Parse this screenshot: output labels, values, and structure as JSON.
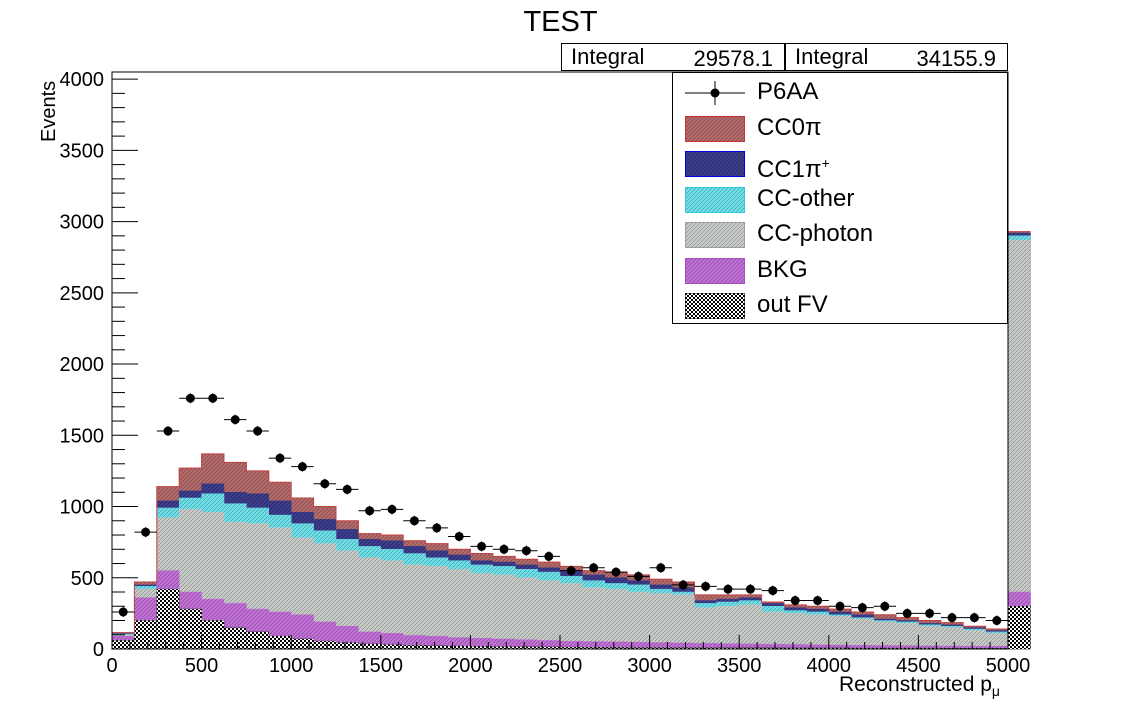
{
  "chart_data": {
    "type": "bar",
    "title": "TEST",
    "xlabel": "Reconstructed p",
    "xlabel_sub": "μ",
    "ylabel": "Events",
    "xlim": [
      0,
      5000
    ],
    "ylim": [
      0,
      4050
    ],
    "bin_width": 125,
    "x_ticks": [
      "0",
      "500",
      "1000",
      "1500",
      "2000",
      "2500",
      "3000",
      "3500",
      "4000",
      "4500",
      "5000"
    ],
    "y_ticks": [
      "0",
      "500",
      "1000",
      "1500",
      "2000",
      "2500",
      "3000",
      "3500",
      "4000"
    ],
    "stats": [
      {
        "label": "Integral",
        "value": "29578.1"
      },
      {
        "label": "Integral",
        "value": "34155.9"
      }
    ],
    "legend": [
      {
        "name": "P6AA",
        "kind": "marker"
      },
      {
        "name": "CC0π",
        "kind": "fill",
        "color": "#b56a6a",
        "line": "#cc3333"
      },
      {
        "name": "CC1π",
        "sup": "+",
        "kind": "fill",
        "color": "#3c3c8c",
        "line": "#0000ee"
      },
      {
        "name": "CC-other",
        "kind": "fill",
        "color": "#6de0ea",
        "line": "#30d0e0"
      },
      {
        "name": "CC-photon",
        "kind": "fill",
        "color": "#c8ccc8",
        "line": "#a0a4a0"
      },
      {
        "name": "BKG",
        "kind": "fill",
        "color": "#c270d8",
        "line": "#b050c8"
      },
      {
        "name": "out FV",
        "kind": "fill",
        "color": "#1a1a1a",
        "line": "#000000"
      }
    ],
    "series_stack_cumulative": [
      {
        "name": "out FV",
        "color": "#1a1a1a",
        "values": [
          60,
          200,
          420,
          280,
          200,
          150,
          120,
          90,
          70,
          55,
          45,
          35,
          30,
          25,
          22,
          20,
          18,
          16,
          15,
          14,
          13,
          12,
          11,
          10,
          10,
          9,
          9,
          8,
          8,
          8,
          7,
          7,
          7,
          6,
          6,
          6,
          6,
          5,
          5,
          5,
          300
        ]
      },
      {
        "name": "BKG",
        "color": "#c270d8",
        "values": [
          90,
          360,
          550,
          400,
          350,
          320,
          280,
          260,
          240,
          190,
          160,
          120,
          110,
          95,
          90,
          80,
          75,
          70,
          65,
          60,
          55,
          52,
          50,
          48,
          45,
          42,
          40,
          38,
          36,
          34,
          32,
          30,
          28,
          26,
          25,
          24,
          22,
          21,
          20,
          20,
          400
        ]
      },
      {
        "name": "CC-photon",
        "color": "#c8ccc8",
        "values": [
          100,
          420,
          920,
          980,
          960,
          890,
          880,
          850,
          780,
          740,
          690,
          640,
          620,
          590,
          580,
          560,
          530,
          520,
          500,
          480,
          460,
          430,
          420,
          400,
          390,
          380,
          290,
          300,
          310,
          260,
          250,
          240,
          230,
          210,
          190,
          180,
          160,
          150,
          130,
          110,
          2870
        ]
      },
      {
        "name": "CC-other",
        "color": "#6de0ea",
        "values": [
          105,
          440,
          990,
          1060,
          1090,
          1020,
          990,
          940,
          880,
          830,
          770,
          720,
          700,
          670,
          640,
          620,
          590,
          580,
          560,
          540,
          510,
          480,
          460,
          450,
          420,
          400,
          320,
          330,
          340,
          300,
          270,
          260,
          240,
          220,
          200,
          190,
          170,
          160,
          140,
          120,
          2900
        ]
      },
      {
        "name": "CC1π+",
        "color": "#3c3c8c",
        "values": [
          110,
          450,
          1040,
          1110,
          1160,
          1100,
          1090,
          1040,
          960,
          910,
          840,
          770,
          760,
          720,
          690,
          660,
          620,
          610,
          590,
          570,
          550,
          520,
          500,
          480,
          450,
          430,
          340,
          350,
          360,
          320,
          290,
          280,
          260,
          240,
          210,
          200,
          180,
          170,
          150,
          130,
          2920
        ]
      },
      {
        "name": "CC0π",
        "color": "#b56a6a",
        "values": [
          115,
          470,
          1140,
          1270,
          1370,
          1310,
          1250,
          1170,
          1060,
          1000,
          900,
          810,
          800,
          760,
          740,
          700,
          670,
          650,
          630,
          610,
          580,
          550,
          540,
          520,
          490,
          470,
          380,
          380,
          380,
          330,
          310,
          300,
          280,
          260,
          240,
          220,
          200,
          185,
          160,
          140,
          2930
        ]
      }
    ],
    "data_series": {
      "name": "P6AA",
      "x": [
        62.5,
        187.5,
        312.5,
        437.5,
        562.5,
        687.5,
        812.5,
        937.5,
        1062.5,
        1187.5,
        1312.5,
        1437.5,
        1562.5,
        1687.5,
        1812.5,
        1937.5,
        2062.5,
        2187.5,
        2312.5,
        2437.5,
        2562.5,
        2687.5,
        2812.5,
        2937.5,
        3062.5,
        3187.5,
        3312.5,
        3437.5,
        3562.5,
        3687.5,
        3812.5,
        3937.5,
        4062.5,
        4187.5,
        4312.5,
        4437.5,
        4562.5,
        4687.5,
        4812.5,
        4937.5
      ],
      "y": [
        260,
        820,
        1530,
        1760,
        1760,
        1610,
        1530,
        1340,
        1280,
        1160,
        1120,
        970,
        980,
        900,
        850,
        790,
        720,
        700,
        690,
        650,
        550,
        570,
        540,
        510,
        570,
        450,
        440,
        420,
        420,
        410,
        340,
        340,
        300,
        290,
        300,
        250,
        250,
        220,
        220,
        200
      ]
    }
  }
}
